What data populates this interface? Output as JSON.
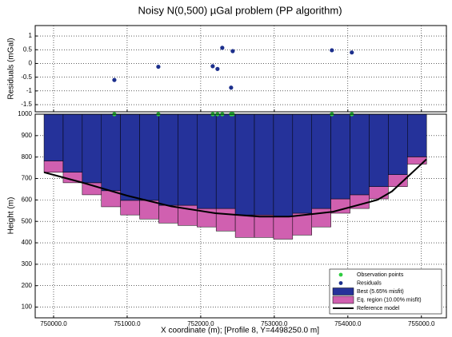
{
  "chart_data": [
    {
      "type": "scatter",
      "title": "Noisy N(0,500) µGal problem (PP algorithm)",
      "ylabel": "Residuals (mGal)",
      "xlim": [
        749750,
        755340
      ],
      "ylim": [
        -1.76,
        1.38
      ],
      "yticks": [
        -1.5,
        -1,
        -0.5,
        0,
        0.5,
        1
      ],
      "grid": true,
      "series": [
        {
          "name": "Residuals",
          "color": "#1c2f8c",
          "x": [
            750826,
            751424,
            752163,
            752228,
            752293,
            752413,
            752435,
            753783,
            754054
          ],
          "values": [
            -0.6,
            -0.12,
            -0.1,
            -0.2,
            0.57,
            -0.88,
            0.45,
            0.48,
            0.4
          ]
        }
      ]
    },
    {
      "type": "prism",
      "xlabel": "X coordinate (m); [Profile 8, Y=4498250.0 m]",
      "ylabel": "Height (m)",
      "xlim": [
        749750,
        755340
      ],
      "ylim": [
        50,
        1000
      ],
      "xticks": [
        {
          "value": 750000,
          "label": "750000.0"
        },
        {
          "value": 751000,
          "label": "751000.0"
        },
        {
          "value": 752000,
          "label": "752000.0"
        },
        {
          "value": 753000,
          "label": "753000.0"
        },
        {
          "value": 754000,
          "label": "754000.0"
        },
        {
          "value": 755000,
          "label": "755000.0"
        }
      ],
      "yticks": [
        100,
        200,
        300,
        400,
        500,
        600,
        700,
        800,
        900,
        1000
      ],
      "grid": true,
      "x_edges": [
        749870,
        750130,
        750390,
        750650,
        750910,
        751170,
        751430,
        751690,
        751950,
        752210,
        752470,
        752730,
        752990,
        753250,
        753510,
        753770,
        754030,
        754290,
        754550,
        754810,
        755070
      ],
      "series": [
        {
          "name": "Best (5.65% misfit)",
          "color": "#25329a",
          "values": [
            782,
            729,
            680,
            643,
            598,
            598,
            575,
            575,
            560,
            560,
            530,
            530,
            523,
            538,
            560,
            605,
            624,
            662,
            718,
            801
          ]
        },
        {
          "name": "Eq. region (10.00% misfit)",
          "color": "#d060b0",
          "values": [
            729,
            680,
            624,
            568,
            530,
            511,
            492,
            481,
            474,
            455,
            425,
            425,
            417,
            436,
            474,
            538,
            560,
            605,
            662,
            767
          ]
        },
        {
          "name": "Observation points",
          "color": "#2ecc40",
          "x": [
            750826,
            751424,
            752163,
            752228,
            752293,
            752413,
            752435,
            753783,
            754054
          ],
          "values": [
            1000,
            1000,
            1000,
            1000,
            1000,
            1000,
            1000,
            1000,
            1000
          ]
        },
        {
          "name": "Reference model",
          "color": "#000000",
          "x": [
            749870,
            750400,
            751000,
            751600,
            752200,
            752800,
            753200,
            753800,
            754400,
            754600,
            755070
          ],
          "values": [
            729,
            680,
            620,
            570,
            538,
            522,
            522,
            545,
            600,
            640,
            790
          ]
        }
      ]
    }
  ]
}
